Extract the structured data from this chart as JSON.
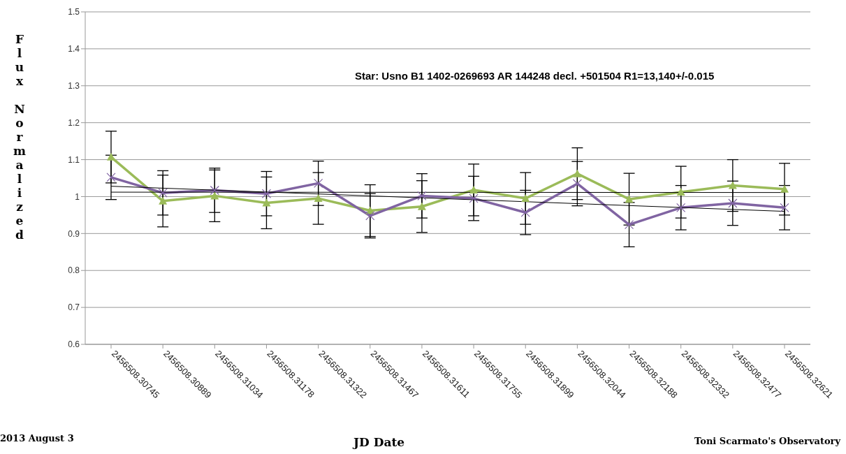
{
  "chart_data": {
    "type": "line",
    "xlabel": "JD Date",
    "ylabel": "Flux Normalized",
    "annotations": [
      "Star: Usno B1 1402-0269693 AR 144248 decl. +501504 R1=13,140+/-0.015",
      "2013 August 3",
      "Toni Scarmato's Observatory"
    ],
    "categories": [
      "2456508.30745",
      "2456508.30889",
      "2456508.31034",
      "2456508.31178",
      "2456508.31322",
      "2456508.31467",
      "2456508.31611",
      "2456508.31755",
      "2456508.31899",
      "2456508.32044",
      "2456508.32188",
      "2456508.32332",
      "2456508.32477",
      "2456508.32621"
    ],
    "series": [
      {
        "color": "#9bbb59",
        "marker": "triangle",
        "values": [
          1.107,
          0.988,
          1.002,
          0.983,
          0.995,
          0.962,
          0.973,
          1.018,
          0.995,
          1.062,
          0.993,
          1.012,
          1.03,
          1.02
        ],
        "errors": [
          0.07,
          0.07,
          0.07,
          0.07,
          0.07,
          0.07,
          0.07,
          0.07,
          0.07,
          0.07,
          0.07,
          0.07,
          0.07,
          0.07
        ]
      },
      {
        "color": "#8064a2",
        "marker": "cross",
        "values": [
          1.052,
          1.01,
          1.017,
          1.008,
          1.036,
          0.948,
          1.002,
          0.995,
          0.957,
          1.035,
          0.924,
          0.97,
          0.982,
          0.97
        ],
        "errors": [
          0.06,
          0.06,
          0.06,
          0.06,
          0.06,
          0.06,
          0.06,
          0.06,
          0.06,
          0.06,
          0.06,
          0.06,
          0.06,
          0.06
        ]
      },
      {
        "type": "line",
        "color": "#000000",
        "marker": "none",
        "x": [
          "2456508.30745",
          "2456508.32621"
        ],
        "values": [
          1.012,
          1.011
        ]
      },
      {
        "type": "line",
        "color": "#000000",
        "marker": "none",
        "x": [
          "2456508.30745",
          "2456508.32621"
        ],
        "values": [
          1.028,
          0.96
        ]
      }
    ],
    "ylim": [
      0.6,
      1.5
    ],
    "yticks": [
      0.6,
      0.7,
      0.8,
      0.9,
      1,
      1.1,
      1.2,
      1.3,
      1.4,
      1.5
    ],
    "grid": "y",
    "legend": false,
    "line_style": "solid"
  }
}
